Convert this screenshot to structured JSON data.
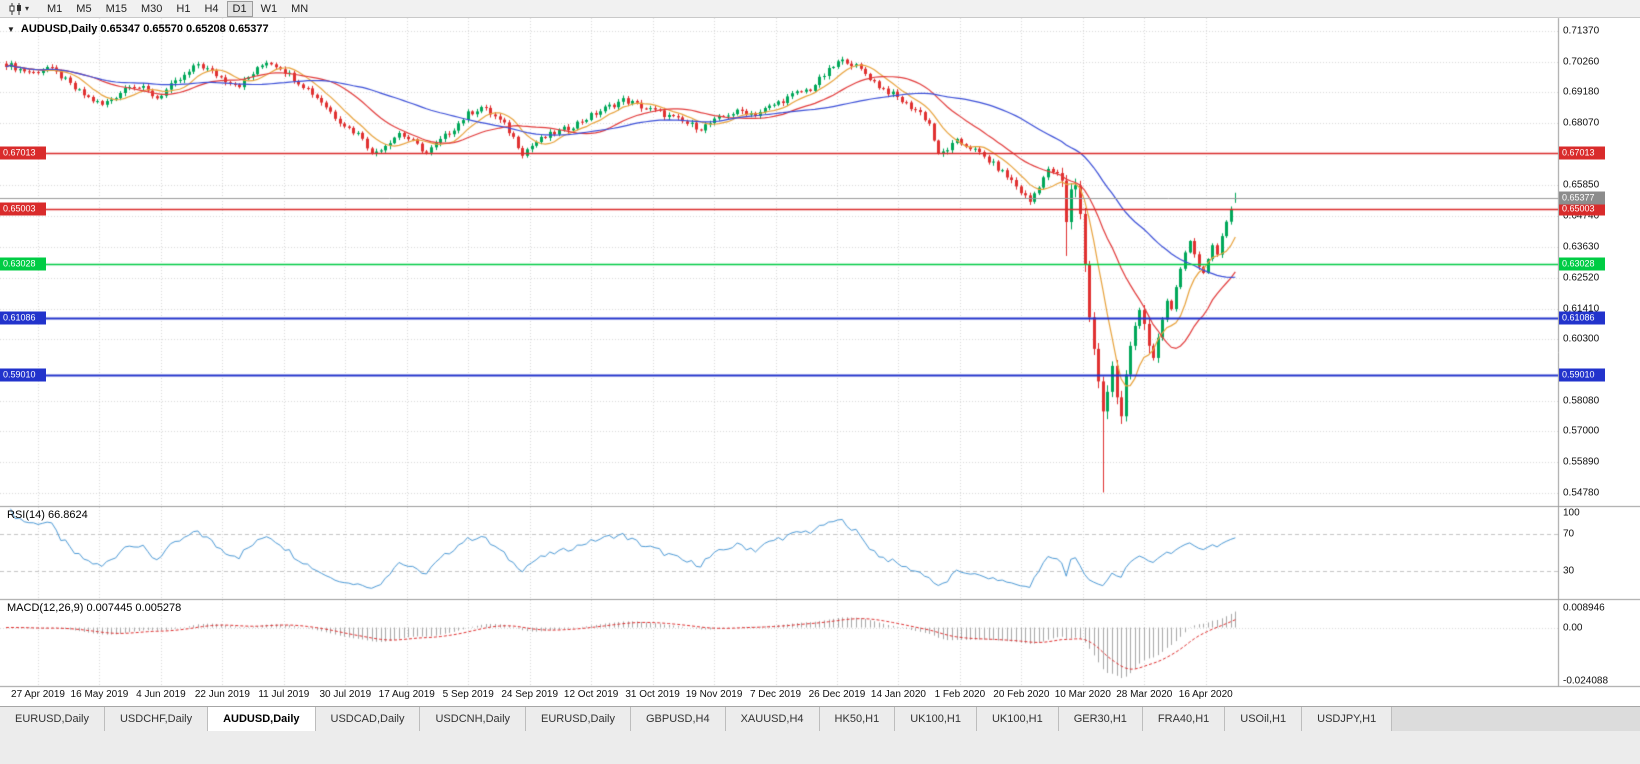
{
  "toolbar": {
    "timeframes": [
      "M1",
      "M5",
      "M15",
      "M30",
      "H1",
      "H4",
      "D1",
      "W1",
      "MN"
    ],
    "active": "D1"
  },
  "icons": {
    "collapse": "▼",
    "chevron_down": "▾"
  },
  "chart": {
    "symbol_line": "AUDUSD,Daily 0.65347 0.65570 0.65208 0.65377"
  },
  "y_axis_labels": [
    "0.71370",
    "0.70260",
    "0.69180",
    "0.68070",
    "0.65850",
    "0.64740",
    "0.63630",
    "0.62520",
    "0.61410",
    "0.60300",
    "0.58080",
    "0.57000",
    "0.55890",
    "0.54780"
  ],
  "x_axis_labels": [
    "27 Apr 2019",
    "16 May 2019",
    "4 Jun 2019",
    "22 Jun 2019",
    "11 Jul 2019",
    "30 Jul 2019",
    "17 Aug 2019",
    "5 Sep 2019",
    "24 Sep 2019",
    "12 Oct 2019",
    "31 Oct 2019",
    "19 Nov 2019",
    "7 Dec 2019",
    "26 Dec 2019",
    "14 Jan 2020",
    "1 Feb 2020",
    "20 Feb 2020",
    "10 Mar 2020",
    "28 Mar 2020",
    "16 Apr 2020"
  ],
  "h_lines": [
    {
      "label": "0.67013",
      "price": 0.67013,
      "color": "#d92b2b",
      "width": 1.5
    },
    {
      "label": "0.65003",
      "price": 0.65003,
      "color": "#d92b2b",
      "width": 1.5
    },
    {
      "label": "0.63028",
      "price": 0.63028,
      "color": "#00cc44",
      "width": 1.5
    },
    {
      "label": "0.61086",
      "price": 0.61086,
      "color": "#2233cc",
      "width": 2
    },
    {
      "label": "0.59010",
      "price": 0.5901,
      "color": "#2233cc",
      "width": 2
    }
  ],
  "current_price": {
    "label": "0.65377",
    "price": 0.65377,
    "color": "#8c8c8c"
  },
  "rsi": {
    "label": "RSI(14) 66.8624",
    "period": 14,
    "value": 66.8624,
    "axis_labels": [
      "100",
      "70",
      "30"
    ],
    "level_lines": [
      70,
      30
    ],
    "color": "#4d9ad6"
  },
  "macd": {
    "label": "MACD(12,26,9) 0.007445 0.005278",
    "fast": 12,
    "slow": 26,
    "signal_period": 9,
    "main_value": 0.007445,
    "signal_value": 0.005278,
    "axis_labels": [
      "0.008946",
      "0.00",
      "-0.024088"
    ],
    "range": [
      -0.0265,
      0.0125
    ],
    "hist_color": "#a8a8a8",
    "signal_color": "#e03131"
  },
  "tabs": {
    "items": [
      "EURUSD,Daily",
      "USDCHF,Daily",
      "AUDUSD,Daily",
      "USDCAD,Daily",
      "USDCNH,Daily",
      "EURUSD,Daily",
      "GBPUSD,H4",
      "XAUUSD,H4",
      "HK50,H1",
      "UK100,H1",
      "UK100,H1",
      "GER30,H1",
      "FRA40,H1",
      "USOil,H1",
      "USDJPY,H1"
    ],
    "active_index": 2
  },
  "chart_data": {
    "type": "candlestick",
    "symbol": "AUDUSD",
    "timeframe": "Daily",
    "bars_count": 270,
    "y_range": [
      0.5435,
      0.7185
    ],
    "last_bar": {
      "open": 0.65347,
      "high": 0.6557,
      "low": 0.65208,
      "close": 0.65377
    },
    "close_anchors": [
      [
        0,
        0.702
      ],
      [
        3,
        0.7
      ],
      [
        6,
        0.6988
      ],
      [
        9,
        0.7008
      ],
      [
        12,
        0.6975
      ],
      [
        15,
        0.693
      ],
      [
        18,
        0.6898
      ],
      [
        21,
        0.6872
      ],
      [
        24,
        0.6905
      ],
      [
        27,
        0.6948
      ],
      [
        30,
        0.693
      ],
      [
        33,
        0.6898
      ],
      [
        36,
        0.694
      ],
      [
        39,
        0.6975
      ],
      [
        42,
        0.702
      ],
      [
        45,
        0.699
      ],
      [
        48,
        0.6962
      ],
      [
        51,
        0.6945
      ],
      [
        54,
        0.6985
      ],
      [
        57,
        0.703
      ],
      [
        60,
        0.7008
      ],
      [
        63,
        0.6968
      ],
      [
        66,
        0.693
      ],
      [
        69,
        0.6885
      ],
      [
        72,
        0.683
      ],
      [
        75,
        0.6788
      ],
      [
        78,
        0.6758
      ],
      [
        80,
        0.6695
      ],
      [
        83,
        0.673
      ],
      [
        86,
        0.6772
      ],
      [
        89,
        0.674
      ],
      [
        92,
        0.67
      ],
      [
        95,
        0.6745
      ],
      [
        98,
        0.679
      ],
      [
        101,
        0.684
      ],
      [
        104,
        0.6865
      ],
      [
        107,
        0.683
      ],
      [
        109,
        0.68
      ],
      [
        111,
        0.6755
      ],
      [
        113,
        0.67
      ],
      [
        116,
        0.674
      ],
      [
        119,
        0.6765
      ],
      [
        123,
        0.679
      ],
      [
        127,
        0.6825
      ],
      [
        131,
        0.686
      ],
      [
        135,
        0.689
      ],
      [
        137,
        0.688
      ],
      [
        140,
        0.686
      ],
      [
        143,
        0.6845
      ],
      [
        146,
        0.6825
      ],
      [
        149,
        0.6805
      ],
      [
        152,
        0.679
      ],
      [
        155,
        0.6815
      ],
      [
        158,
        0.684
      ],
      [
        161,
        0.685
      ],
      [
        164,
        0.684
      ],
      [
        167,
        0.6865
      ],
      [
        170,
        0.689
      ],
      [
        173,
        0.6915
      ],
      [
        176,
        0.693
      ],
      [
        179,
        0.698
      ],
      [
        182,
        0.7025
      ],
      [
        184,
        0.7032
      ],
      [
        186,
        0.701
      ],
      [
        188,
        0.6985
      ],
      [
        191,
        0.694
      ],
      [
        194,
        0.691
      ],
      [
        197,
        0.6875
      ],
      [
        200,
        0.6845
      ],
      [
        202,
        0.6805
      ],
      [
        204,
        0.669
      ],
      [
        206,
        0.6715
      ],
      [
        208,
        0.674
      ],
      [
        211,
        0.672
      ],
      [
        214,
        0.6685
      ],
      [
        217,
        0.6645
      ],
      [
        220,
        0.66
      ],
      [
        222,
        0.656
      ],
      [
        224,
        0.6525
      ],
      [
        226,
        0.6585
      ],
      [
        228,
        0.664
      ],
      [
        230,
        0.6625
      ],
      [
        231,
        0.66
      ],
      [
        232,
        0.645
      ],
      [
        233,
        0.657
      ],
      [
        234,
        0.6585
      ],
      [
        235,
        0.648
      ],
      [
        236,
        0.63
      ],
      [
        237,
        0.611
      ],
      [
        238,
        0.5995
      ],
      [
        239,
        0.588
      ],
      [
        240,
        0.577
      ],
      [
        241,
        0.584
      ],
      [
        242,
        0.5935
      ],
      [
        243,
        0.5825
      ],
      [
        244,
        0.5755
      ],
      [
        245,
        0.5905
      ],
      [
        246,
        0.6005
      ],
      [
        247,
        0.6075
      ],
      [
        248,
        0.6135
      ],
      [
        249,
        0.6085
      ],
      [
        250,
        0.6005
      ],
      [
        251,
        0.5965
      ],
      [
        252,
        0.6035
      ],
      [
        253,
        0.6105
      ],
      [
        254,
        0.6165
      ],
      [
        255,
        0.6135
      ],
      [
        256,
        0.6215
      ],
      [
        257,
        0.6285
      ],
      [
        258,
        0.6345
      ],
      [
        259,
        0.6385
      ],
      [
        260,
        0.6335
      ],
      [
        261,
        0.6295
      ],
      [
        262,
        0.6268
      ],
      [
        263,
        0.6315
      ],
      [
        264,
        0.6365
      ],
      [
        265,
        0.6335
      ],
      [
        266,
        0.6405
      ],
      [
        267,
        0.6455
      ],
      [
        268,
        0.6498
      ],
      [
        269,
        0.65377
      ]
    ],
    "wick_overrides": {
      "232": {
        "low": 0.633
      },
      "240": {
        "low": 0.548
      }
    },
    "moving_averages": [
      {
        "period": 8,
        "color": "#e8a33d"
      },
      {
        "period": 20,
        "color": "#e23b3b"
      },
      {
        "period": 45,
        "color": "#3b4fd8"
      }
    ],
    "colors": {
      "up": "#00a859",
      "down": "#e03131",
      "grid": "#d9d9d9",
      "separator": "#9c9c9c",
      "bg": "#ffffff",
      "current_line": "#9a9a9a"
    }
  }
}
